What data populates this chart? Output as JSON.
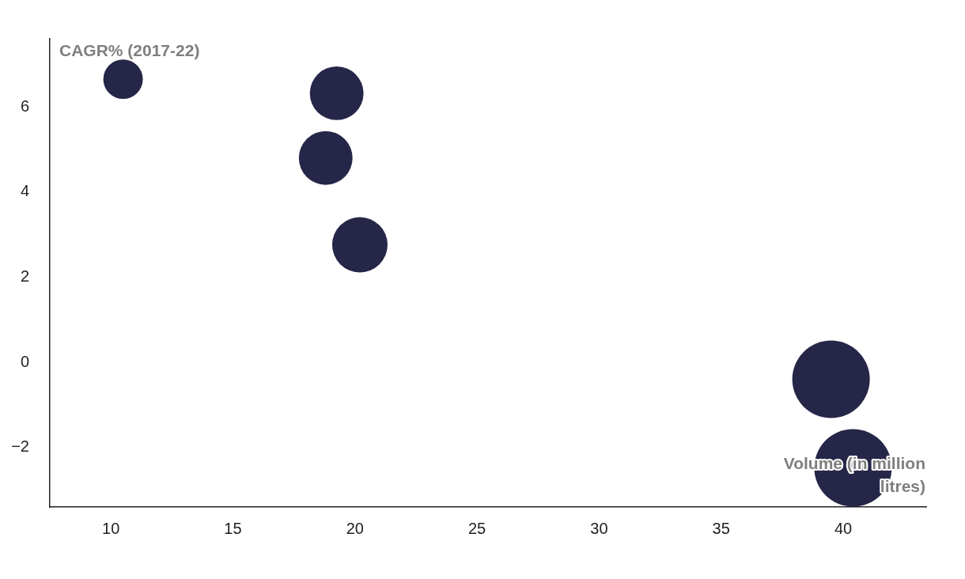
{
  "chart_data": {
    "type": "bubble",
    "xlabel": "Volume (in million litres)",
    "ylabel": "CAGR% (2017-22)",
    "x": [
      10.5,
      19.25,
      18.8,
      20.2,
      39.5,
      40.4
    ],
    "values": [
      6.65,
      6.32,
      4.8,
      2.76,
      -0.4,
      -2.48
    ],
    "sizes": [
      0.26,
      0.48,
      0.48,
      0.51,
      1,
      1
    ],
    "color": "#262649",
    "xlim": [
      7.5,
      43.4
    ],
    "xticks": [
      10,
      15,
      20,
      25,
      30,
      35,
      40
    ],
    "ylim": [
      -3.4,
      7.6
    ],
    "yticks": [
      -2,
      0,
      2,
      4,
      6
    ],
    "grid": false,
    "legend": false
  }
}
